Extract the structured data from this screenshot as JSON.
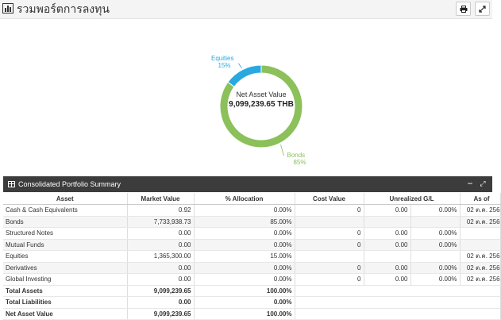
{
  "header": {
    "title": "รวมพอร์ตการลงทุน",
    "print_icon": "print-icon",
    "expand_icon": "expand-icon"
  },
  "donut": {
    "center_label": "Net Asset Value",
    "center_value": "9,099,239.65 THB",
    "slices": [
      {
        "name": "Equities",
        "percent_label": "15%",
        "value": 15,
        "color": "#29a9df"
      },
      {
        "name": "Bonds",
        "percent_label": "85%",
        "value": 85,
        "color": "#8cc05b"
      }
    ]
  },
  "panel": {
    "title": "Consolidated Portfolio Summary",
    "minimize_label": "−",
    "expand_label": "⤢"
  },
  "table": {
    "columns": [
      "Asset",
      "Market Value",
      "% Allocation",
      "Cost Value",
      "Unrealized G/L",
      "As of"
    ],
    "rows": [
      {
        "asset": "Cash & Cash Equivalents",
        "market": "0.92",
        "alloc": "0.00%",
        "cost": "0",
        "gl": "0.00",
        "glpct": "0.00%",
        "asof": "02 ต.ค. 256"
      },
      {
        "asset": "Bonds",
        "market": "7,733,938.73",
        "alloc": "85.00%",
        "cost": "",
        "gl": "",
        "glpct": "",
        "asof": "02 ต.ค. 256"
      },
      {
        "asset": "Structured Notes",
        "market": "0.00",
        "alloc": "0.00%",
        "cost": "0",
        "gl": "0.00",
        "glpct": "0.00%",
        "asof": ""
      },
      {
        "asset": "Mutual Funds",
        "market": "0.00",
        "alloc": "0.00%",
        "cost": "0",
        "gl": "0.00",
        "glpct": "0.00%",
        "asof": ""
      },
      {
        "asset": "Equities",
        "market": "1,365,300.00",
        "alloc": "15.00%",
        "cost": "",
        "gl": "",
        "glpct": "",
        "asof": "02 ต.ค. 256"
      },
      {
        "asset": "Derivatives",
        "market": "0.00",
        "alloc": "0.00%",
        "cost": "0",
        "gl": "0.00",
        "glpct": "0.00%",
        "asof": "02 ต.ค. 256"
      },
      {
        "asset": "Global Investing",
        "market": "0.00",
        "alloc": "0.00%",
        "cost": "0",
        "gl": "0.00",
        "glpct": "0.00%",
        "asof": "02 ต.ค. 256"
      }
    ],
    "totals": [
      {
        "asset": "Total Assets",
        "market": "9,099,239.65",
        "alloc": "100.00%"
      },
      {
        "asset": "Total Liabilities",
        "market": "0.00",
        "alloc": "0.00%"
      },
      {
        "asset": "Net Asset Value",
        "market": "9,099,239.65",
        "alloc": "100.00%"
      }
    ]
  }
}
